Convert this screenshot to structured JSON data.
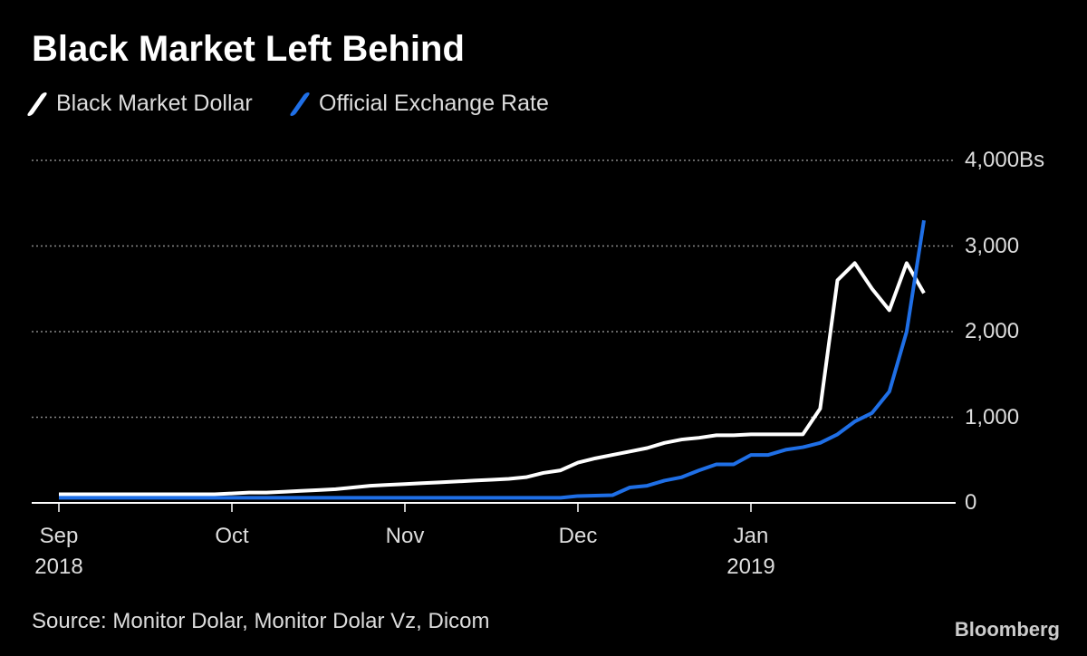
{
  "chart_data": {
    "type": "line",
    "title": "Black Market Left Behind",
    "categories": [
      "Sep\n2018",
      null,
      null,
      null,
      null,
      null,
      null,
      null,
      null,
      null,
      "Oct",
      null,
      null,
      null,
      null,
      null,
      null,
      null,
      null,
      null,
      "Nov",
      null,
      null,
      null,
      null,
      null,
      null,
      null,
      null,
      null,
      "Dec",
      null,
      null,
      null,
      null,
      null,
      null,
      null,
      null,
      null,
      "Jan\n2019",
      null,
      null,
      null,
      null,
      null,
      null,
      null,
      null,
      null,
      null
    ],
    "series": [
      {
        "name": "Black Market Dollar",
        "color": "#ffffff",
        "values": [
          100,
          100,
          100,
          100,
          100,
          100,
          100,
          100,
          100,
          100,
          110,
          120,
          120,
          130,
          140,
          150,
          160,
          180,
          200,
          210,
          220,
          230,
          240,
          250,
          260,
          270,
          280,
          300,
          350,
          380,
          470,
          520,
          560,
          600,
          640,
          700,
          740,
          760,
          790,
          790,
          800,
          800,
          800,
          800,
          1100,
          2600,
          2800,
          2500,
          2250,
          2800,
          2450
        ]
      },
      {
        "name": "Official Exchange Rate",
        "color": "#1f6fe6",
        "values": [
          60,
          60,
          60,
          60,
          60,
          60,
          60,
          60,
          60,
          60,
          60,
          60,
          60,
          60,
          60,
          60,
          60,
          60,
          60,
          60,
          60,
          60,
          60,
          60,
          60,
          60,
          60,
          60,
          60,
          60,
          80,
          85,
          90,
          180,
          200,
          260,
          300,
          380,
          450,
          450,
          560,
          560,
          620,
          650,
          700,
          800,
          950,
          1050,
          1300,
          2000,
          3300
        ]
      }
    ],
    "ylim": [
      0,
      4000
    ],
    "yticks": [
      0,
      {
        "value": 1000,
        "label": "1,000"
      },
      {
        "value": 2000,
        "label": "2,000"
      },
      {
        "value": 3000,
        "label": "3,000"
      },
      {
        "value": 4000,
        "label": "4,000Bs"
      }
    ],
    "grid": true,
    "source": "Source: Monitor Dolar, Monitor Dolar Vz, Dicom",
    "brand": "Bloomberg"
  }
}
